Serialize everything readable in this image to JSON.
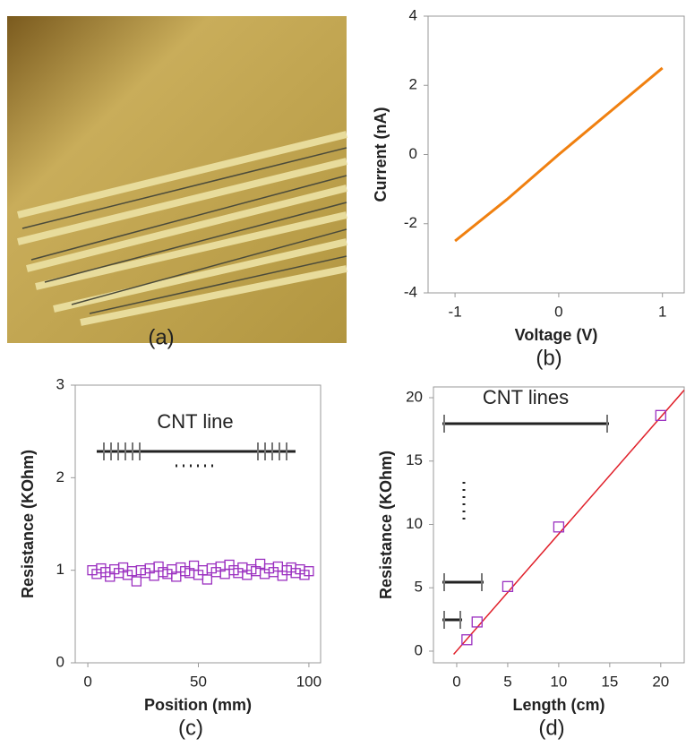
{
  "photo": {
    "label": "(a)"
  },
  "chart_data": [
    {
      "type": "line",
      "label": "(b)",
      "x_label": "Voltage (V)",
      "y_label": "Current (nA)",
      "xlim": [
        -1.26,
        1.21
      ],
      "ylim": [
        -4,
        4
      ],
      "xticks": [
        -1,
        0,
        1
      ],
      "yticks": [
        -4,
        -2,
        0,
        2,
        4
      ],
      "series": [
        {
          "color": "#f08010",
          "style": "line",
          "x": [
            -1,
            -0.5,
            0,
            0.5,
            1
          ],
          "values": [
            -2.5,
            -1.3,
            0,
            1.25,
            2.5
          ]
        }
      ]
    },
    {
      "type": "scatter",
      "label": "(c)",
      "x_label": "Position (mm)",
      "y_label": "Resistance (KOhm)",
      "annotation": "CNT line",
      "xlim": [
        -5.7,
        105.3
      ],
      "ylim": [
        0,
        3
      ],
      "xticks": [
        0,
        50,
        100
      ],
      "yticks": [
        0,
        1,
        2,
        3
      ],
      "series": [
        {
          "color": "#9b30c0",
          "style": "markers",
          "x": [
            2,
            4,
            6,
            8,
            10,
            12,
            14,
            16,
            18,
            20,
            22,
            24,
            26,
            28,
            30,
            32,
            34,
            36,
            38,
            40,
            42,
            44,
            46,
            48,
            50,
            52,
            54,
            56,
            58,
            60,
            62,
            64,
            66,
            68,
            70,
            72,
            74,
            76,
            78,
            80,
            82,
            84,
            86,
            88,
            90,
            92,
            94,
            96,
            98,
            100
          ],
          "values": [
            1.0,
            0.96,
            1.02,
            0.98,
            0.93,
            1.01,
            0.97,
            1.03,
            0.95,
            0.99,
            0.88,
            1.0,
            0.97,
            1.02,
            0.94,
            1.04,
            0.98,
            0.96,
            1.01,
            0.93,
            1.03,
            0.99,
            0.97,
            1.05,
            0.95,
            1.0,
            0.9,
            1.02,
            0.98,
            1.04,
            0.96,
            1.06,
            1.0,
            0.97,
            1.03,
            0.95,
            1.01,
            0.99,
            1.07,
            0.96,
            1.02,
            0.98,
            1.04,
            0.94,
            1.0,
            1.03,
            0.97,
            1.01,
            0.95,
            0.99
          ]
        }
      ]
    },
    {
      "type": "scatter",
      "label": "(d)",
      "x_label": "Length (cm)",
      "y_label": "Resistance (KOhm)",
      "annotation": "CNT lines",
      "xlim": [
        -2.28,
        22.3
      ],
      "ylim": [
        -0.92,
        20.85
      ],
      "xticks": [
        0,
        5,
        10,
        15,
        20
      ],
      "yticks": [
        0,
        5,
        10,
        15,
        20
      ],
      "series": [
        {
          "color": "#e0202a",
          "style": "line",
          "x": [
            -0.3,
            22.3
          ],
          "values": [
            -0.25,
            20.6
          ]
        },
        {
          "color": "#9b30c0",
          "style": "markers",
          "x": [
            1,
            2,
            5,
            10,
            20
          ],
          "values": [
            0.9,
            2.3,
            5.1,
            9.8,
            18.6
          ]
        }
      ]
    }
  ]
}
